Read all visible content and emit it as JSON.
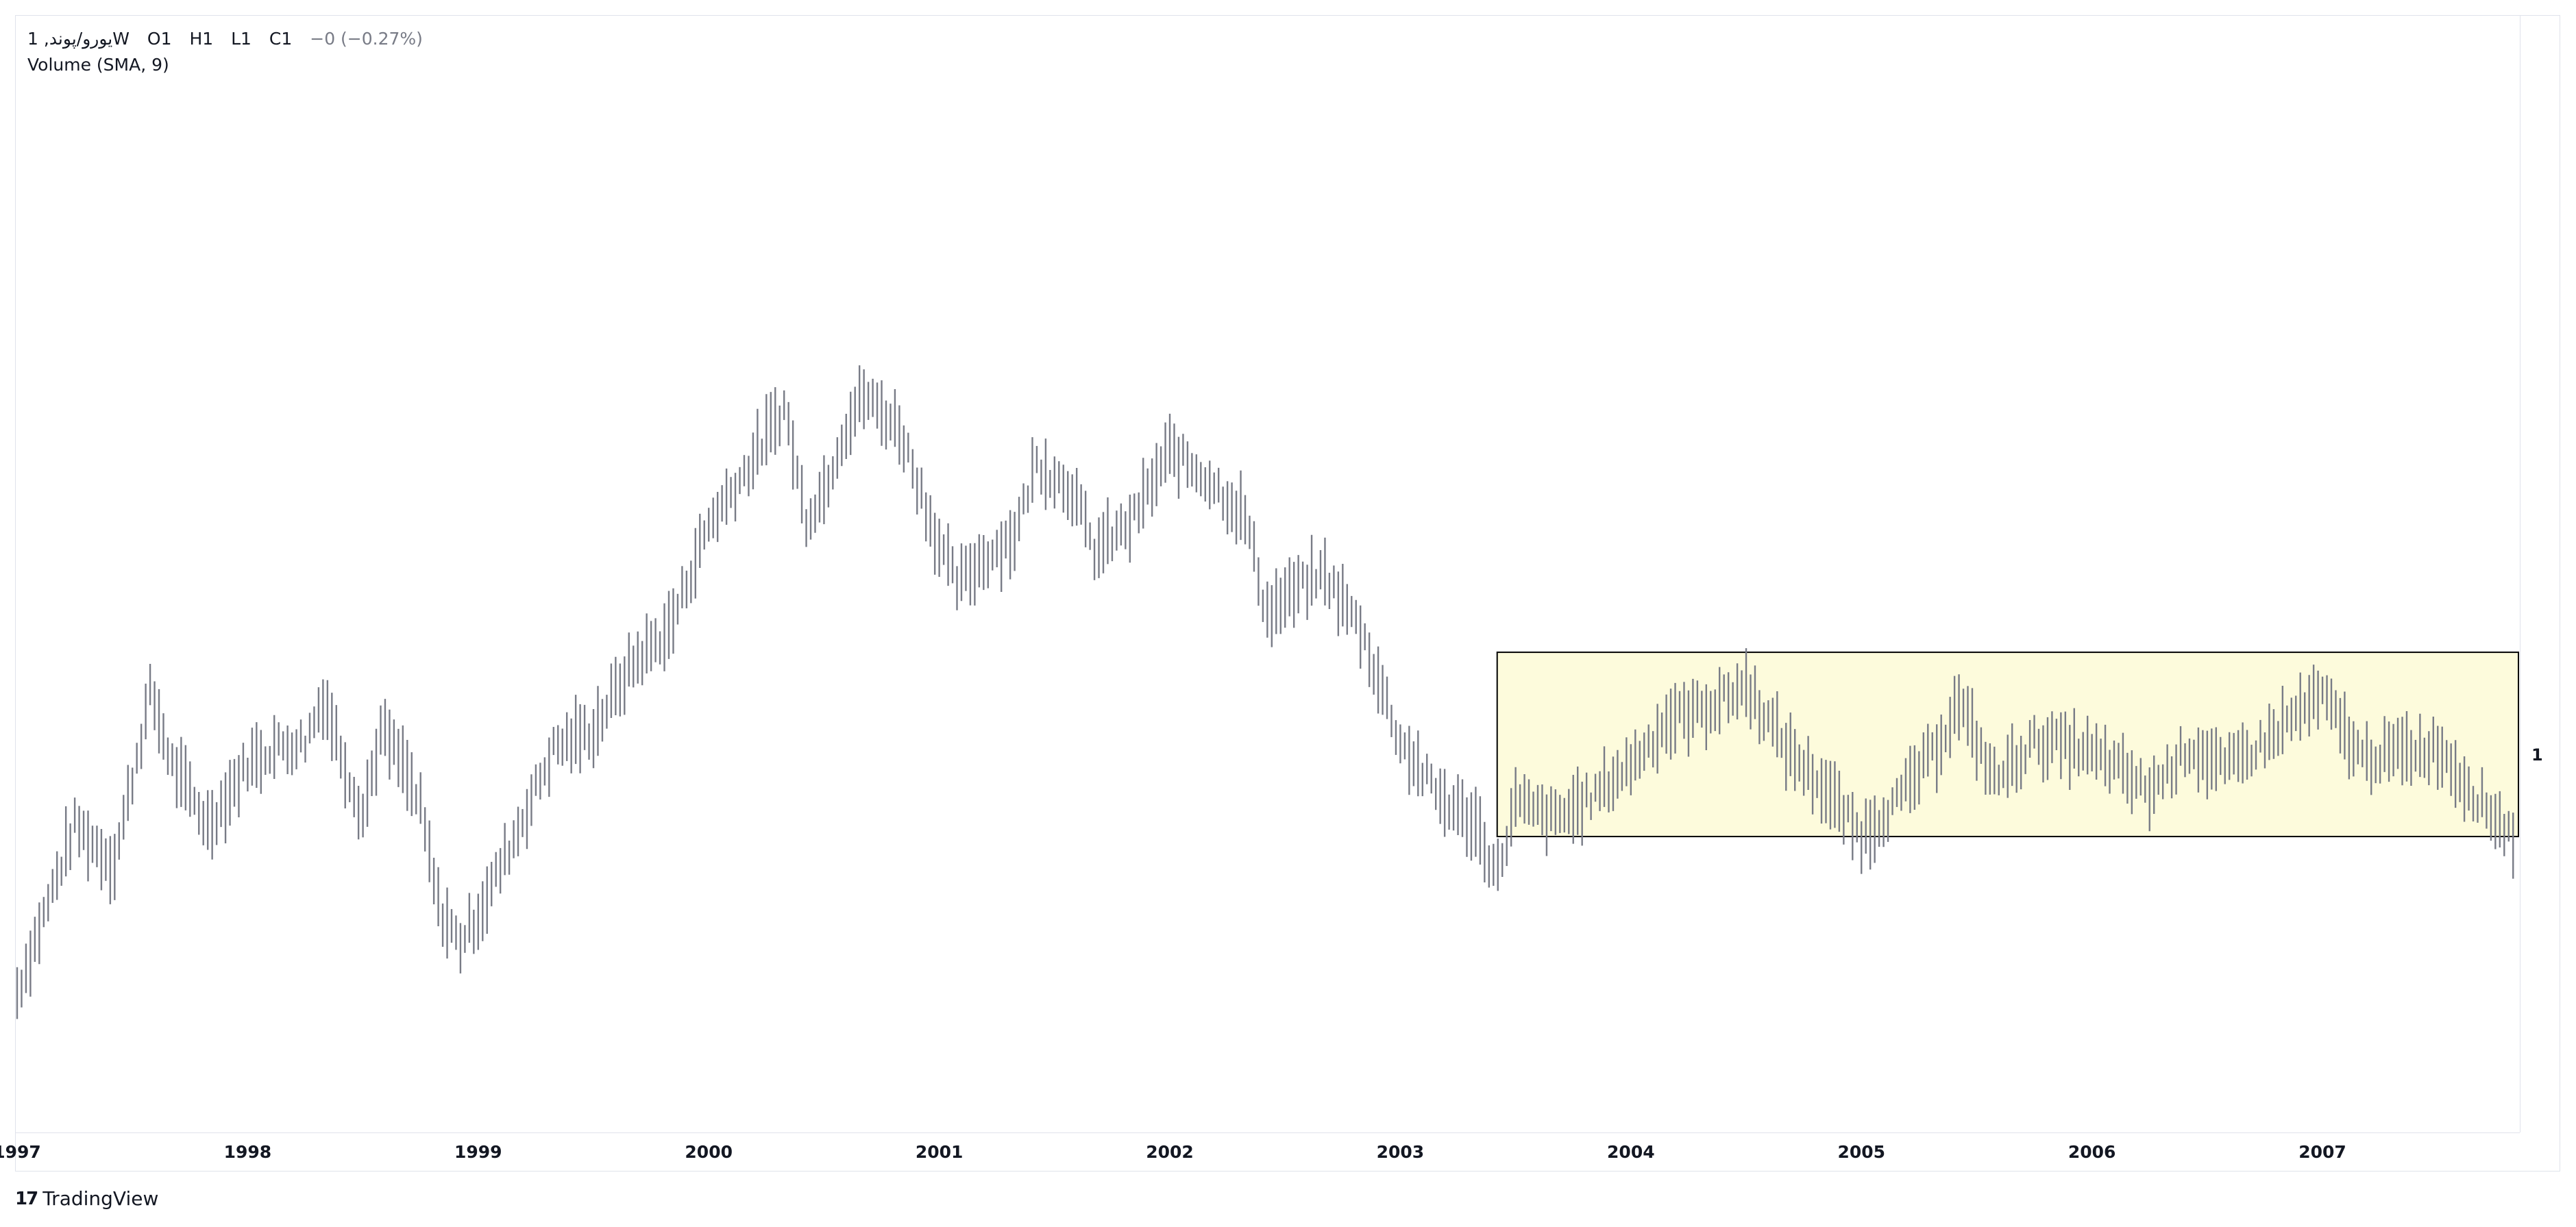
{
  "legend": {
    "symbol": "1 ,یورو/پوند",
    "interval": "W",
    "ohlc": [
      "O1",
      "H1",
      "L1",
      "C1"
    ],
    "change": "−0 (−0.27%)",
    "indicator": "Volume (SMA, 9)"
  },
  "price_scale": {
    "last_label": "1"
  },
  "brand": {
    "name": "TradingView",
    "logo": "tradingview-logo-icon"
  },
  "colors": {
    "bars": "#787b86",
    "rect_fill": "#fdfbdc",
    "rect_border": "#000000",
    "text": "#131722"
  },
  "chart_data": {
    "type": "ohlc",
    "x_ticks": [
      "1997",
      "1998",
      "1999",
      "2000",
      "2001",
      "2002",
      "2003",
      "2004",
      "2005",
      "2006",
      "2007"
    ],
    "xlim": [
      1997.0,
      2007.85
    ],
    "y_scale": "price (unlabeled)",
    "series": [
      {
        "points": [
          [
            1997.0,
            0.125
          ],
          [
            1997.25,
            0.275
          ],
          [
            1997.42,
            0.24
          ],
          [
            1997.58,
            0.395
          ],
          [
            1997.67,
            0.33
          ],
          [
            1997.83,
            0.275
          ],
          [
            1998.0,
            0.33
          ],
          [
            1998.12,
            0.345
          ],
          [
            1998.25,
            0.35
          ],
          [
            1998.33,
            0.39
          ],
          [
            1998.42,
            0.33
          ],
          [
            1998.5,
            0.285
          ],
          [
            1998.58,
            0.36
          ],
          [
            1998.67,
            0.33
          ],
          [
            1998.75,
            0.29
          ],
          [
            1998.83,
            0.2
          ],
          [
            1998.92,
            0.17
          ],
          [
            1999.0,
            0.195
          ],
          [
            1999.17,
            0.27
          ],
          [
            1999.33,
            0.345
          ],
          [
            1999.5,
            0.36
          ],
          [
            1999.67,
            0.42
          ],
          [
            1999.83,
            0.45
          ],
          [
            2000.0,
            0.545
          ],
          [
            2000.17,
            0.595
          ],
          [
            2000.33,
            0.65
          ],
          [
            2000.42,
            0.55
          ],
          [
            2000.5,
            0.575
          ],
          [
            2000.58,
            0.625
          ],
          [
            2000.67,
            0.66
          ],
          [
            2000.83,
            0.63
          ],
          [
            2001.0,
            0.525
          ],
          [
            2001.08,
            0.49
          ],
          [
            2001.17,
            0.51
          ],
          [
            2001.33,
            0.535
          ],
          [
            2001.42,
            0.6
          ],
          [
            2001.58,
            0.575
          ],
          [
            2001.67,
            0.52
          ],
          [
            2001.83,
            0.545
          ],
          [
            2002.0,
            0.61
          ],
          [
            2002.17,
            0.585
          ],
          [
            2002.33,
            0.55
          ],
          [
            2002.42,
            0.465
          ],
          [
            2002.58,
            0.49
          ],
          [
            2002.67,
            0.5
          ],
          [
            2002.83,
            0.45
          ],
          [
            2003.0,
            0.35
          ],
          [
            2003.17,
            0.3
          ],
          [
            2003.33,
            0.275
          ],
          [
            2003.42,
            0.23
          ],
          [
            2003.5,
            0.295
          ],
          [
            2003.67,
            0.28
          ],
          [
            2003.83,
            0.3
          ],
          [
            2004.0,
            0.33
          ],
          [
            2004.17,
            0.37
          ],
          [
            2004.33,
            0.38
          ],
          [
            2004.5,
            0.4
          ],
          [
            2004.67,
            0.345
          ],
          [
            2004.83,
            0.31
          ],
          [
            2005.0,
            0.265
          ],
          [
            2005.17,
            0.3
          ],
          [
            2005.33,
            0.345
          ],
          [
            2005.42,
            0.385
          ],
          [
            2005.58,
            0.315
          ],
          [
            2005.75,
            0.35
          ],
          [
            2005.92,
            0.345
          ],
          [
            2006.08,
            0.33
          ],
          [
            2006.25,
            0.305
          ],
          [
            2006.42,
            0.345
          ],
          [
            2006.58,
            0.325
          ],
          [
            2006.75,
            0.35
          ],
          [
            2006.92,
            0.38
          ],
          [
            2007.0,
            0.39
          ],
          [
            2007.17,
            0.335
          ],
          [
            2007.33,
            0.34
          ],
          [
            2007.5,
            0.345
          ],
          [
            2007.67,
            0.3
          ],
          [
            2007.83,
            0.265
          ]
        ]
      }
    ],
    "rectangle": {
      "x": [
        2003.42,
        2007.85
      ],
      "y": [
        0.265,
        0.43
      ]
    }
  }
}
